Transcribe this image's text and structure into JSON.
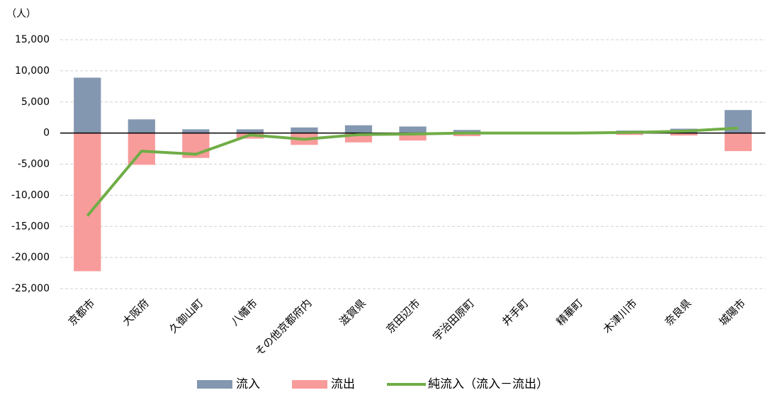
{
  "chart_data": {
    "type": "bar-line",
    "unit_label": "（人）",
    "categories": [
      "京都市",
      "大阪府",
      "久御山町",
      "八幡市",
      "その他京都府内",
      "滋賀県",
      "京田辺市",
      "宇治田原町",
      "井手町",
      "精華町",
      "木津川市",
      "奈良県",
      "城陽市"
    ],
    "series": [
      {
        "name": "流入",
        "color": "#8497b0",
        "kind": "bar",
        "values": [
          8900,
          2200,
          600,
          600,
          900,
          1250,
          1050,
          500,
          100,
          100,
          400,
          700,
          3700
        ]
      },
      {
        "name": "流出",
        "color": "#f89b9b",
        "kind": "bar",
        "values": [
          -22200,
          -5100,
          -4000,
          -900,
          -1900,
          -1500,
          -1200,
          -500,
          -100,
          -100,
          -300,
          -400,
          -2900
        ]
      },
      {
        "name": "純流入（流入－流出）",
        "color": "#70ad47",
        "kind": "line",
        "values": [
          -13300,
          -2900,
          -3400,
          -300,
          -1000,
          -250,
          -150,
          0,
          0,
          0,
          100,
          300,
          800
        ]
      }
    ],
    "ylim": [
      -25000,
      15000
    ],
    "yticks": [
      {
        "value": -25000,
        "label": "-25,000"
      },
      {
        "value": -20000,
        "label": "-20,000"
      },
      {
        "value": -15000,
        "label": "-15,000"
      },
      {
        "value": -10000,
        "label": "-10,000"
      },
      {
        "value": -5000,
        "label": "-5,000"
      },
      0,
      {
        "value": 5000,
        "label": "5,000"
      },
      {
        "value": 10000,
        "label": "10,000"
      },
      {
        "value": 15000,
        "label": "15,000"
      }
    ],
    "grid": true
  }
}
